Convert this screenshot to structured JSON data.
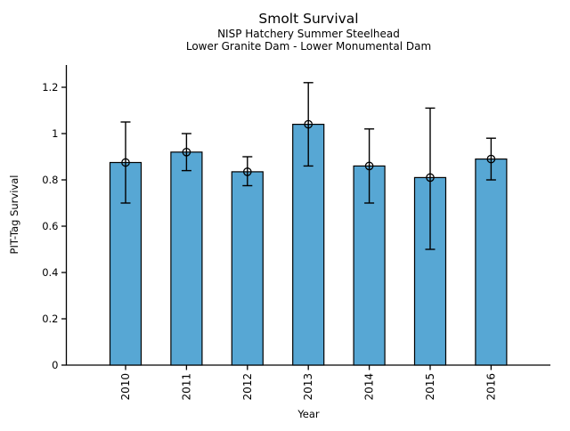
{
  "chart_data": {
    "type": "bar",
    "title": "Smolt Survival",
    "subtitle_line1": "NISP Hatchery Summer Steelhead",
    "subtitle_line2": "Lower Granite Dam - Lower Monumental Dam",
    "xlabel": "Year",
    "ylabel": "PIT-Tag Survival",
    "categories": [
      "2010",
      "2011",
      "2012",
      "2013",
      "2014",
      "2015",
      "2016"
    ],
    "series": [
      {
        "name": "PIT-Tag Survival",
        "values": [
          0.875,
          0.92,
          0.835,
          1.04,
          0.86,
          0.81,
          0.89
        ],
        "error_low": [
          0.7,
          0.84,
          0.775,
          0.86,
          0.7,
          0.5,
          0.8
        ],
        "error_high": [
          1.05,
          1.0,
          0.9,
          1.22,
          1.02,
          1.11,
          0.98
        ]
      }
    ],
    "yticks": [
      0,
      0.2,
      0.4,
      0.6,
      0.8,
      1.0,
      1.2
    ],
    "ytick_labels": [
      "0",
      "0.2",
      "0.4",
      "0.6",
      "0.8",
      "1",
      "1.2"
    ],
    "ylim": [
      0,
      1.29
    ],
    "grid": false,
    "legend": "none",
    "marker": "open-circle",
    "colors": {
      "bar_fill": "#57a7d4",
      "bar_edge": "#000000",
      "errorbar": "#000000",
      "marker_edge": "#000000",
      "axis": "#000000",
      "text": "#000000",
      "background": "#ffffff"
    }
  }
}
